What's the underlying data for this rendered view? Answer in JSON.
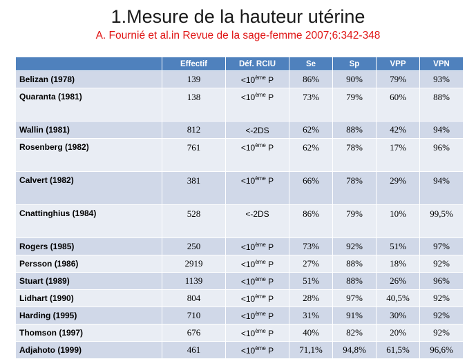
{
  "slide": {
    "title": "1.Mesure de la hauteur utérine",
    "subtitle": "A. Fournié et al.in Revue de la sage-femme 2007;6:342-348"
  },
  "table": {
    "headers": [
      "",
      "Effectif",
      "Déf. RCIU",
      "Se",
      "Sp",
      "VPP",
      "VPN"
    ],
    "rows": [
      {
        "study": "Belizan (1978)",
        "effectif": "139",
        "crit_base": "<10",
        "crit_sup": "ème",
        "crit_tail": " P",
        "se": "86%",
        "sp": "90%",
        "vpp": "79%",
        "vpn": "93%"
      },
      {
        "study": "Quaranta  (1981)",
        "effectif": "138",
        "crit_base": "<10",
        "crit_sup": "ème",
        "crit_tail": " P",
        "se": "73%",
        "sp": "79%",
        "vpp": "60%",
        "vpn": "88%"
      },
      {
        "study": "Wallin (1981)",
        "effectif": "812",
        "crit_base": "<-2DS",
        "crit_sup": "",
        "crit_tail": "",
        "se": "62%",
        "sp": "88%",
        "vpp": "42%",
        "vpn": "94%"
      },
      {
        "study": "Rosenberg (1982)",
        "effectif": "761",
        "crit_base": "<10",
        "crit_sup": "ème",
        "crit_tail": " P",
        "se": "62%",
        "sp": "78%",
        "vpp": "17%",
        "vpn": "96%"
      },
      {
        "study": "Calvert (1982)",
        "effectif": "381",
        "crit_base": "<10",
        "crit_sup": "ème",
        "crit_tail": " P",
        "se": "66%",
        "sp": "78%",
        "vpp": "29%",
        "vpn": "94%"
      },
      {
        "study": "Cnattinghius  (1984)",
        "effectif": "528",
        "crit_base": "<-2DS",
        "crit_sup": "",
        "crit_tail": "",
        "se": "86%",
        "sp": "79%",
        "vpp": "10%",
        "vpn": "99,5%"
      },
      {
        "study": "Rogers (1985)",
        "effectif": "250",
        "crit_base": "<10",
        "crit_sup": "ème",
        "crit_tail": " P",
        "se": "73%",
        "sp": "92%",
        "vpp": "51%",
        "vpn": "97%"
      },
      {
        "study": "Persson (1986)",
        "effectif": "2919",
        "crit_base": "<10",
        "crit_sup": "ème",
        "crit_tail": " P",
        "se": "27%",
        "sp": "88%",
        "vpp": "18%",
        "vpn": "92%"
      },
      {
        "study": "Stuart (1989)",
        "effectif": "1139",
        "crit_base": "<10",
        "crit_sup": "ème",
        "crit_tail": " P",
        "se": "51%",
        "sp": "88%",
        "vpp": "26%",
        "vpn": "96%"
      },
      {
        "study": "Lidhart (1990)",
        "effectif": "804",
        "crit_base": "<10",
        "crit_sup": "ème",
        "crit_tail": " P",
        "se": "28%",
        "sp": "97%",
        "vpp": "40,5%",
        "vpn": "92%"
      },
      {
        "study": "Harding (1995)",
        "effectif": "710",
        "crit_base": "<10",
        "crit_sup": "ème",
        "crit_tail": " P",
        "se": "31%",
        "sp": "91%",
        "vpp": "30%",
        "vpn": "92%"
      },
      {
        "study": "Thomson (1997)",
        "effectif": "676",
        "crit_base": "<10",
        "crit_sup": "ème",
        "crit_tail": " P",
        "se": "40%",
        "sp": "82%",
        "vpp": "20%",
        "vpn": "92%"
      },
      {
        "study": "Adjahoto (1999)",
        "effectif": "461",
        "crit_base": "<10",
        "crit_sup": "ème",
        "crit_tail": " P",
        "se": "71,1%",
        "sp": "94,8%",
        "vpp": "61,5%",
        "vpn": "96,6%"
      }
    ]
  },
  "colors": {
    "header_bg": "#4f81bd",
    "row_odd": "#d0d8e8",
    "row_even": "#e9edf4",
    "subtitle": "#e01515"
  }
}
